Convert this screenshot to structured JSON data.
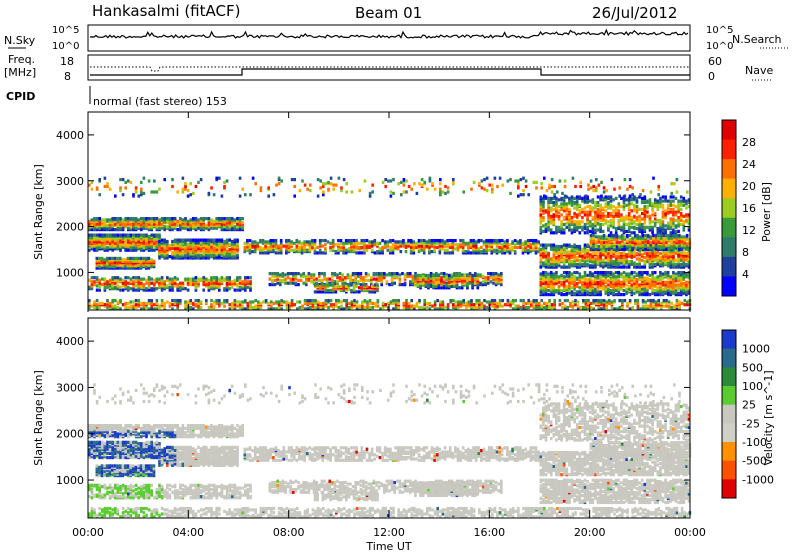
{
  "header": {
    "station": "Hankasalmi (fitACF)",
    "beam": "Beam 01",
    "date": "26/Jul/2012"
  },
  "top_panels": {
    "nsky_label": "N.Sky",
    "nsky_ticks": [
      "10^5",
      "10^0"
    ],
    "nsearch_label": "N.Search",
    "nsearch_ticks": [
      "10^5",
      "10^0"
    ],
    "freq_label_1": "Freq.",
    "freq_label_2": "[MHz]",
    "freq_ticks": [
      "18",
      "8"
    ],
    "nave_label": "Nave",
    "nave_ticks": [
      "60",
      "0"
    ],
    "cpid_label": "CPID",
    "mode_text": "normal (fast stereo) 153"
  },
  "chart_data": [
    {
      "type": "heatmap",
      "name": "power",
      "ylabel": "Slant Range [km]",
      "yticks": [
        "4000",
        "3000",
        "2000",
        "1000"
      ],
      "ylim": [
        180,
        4500
      ],
      "colorbar_label": "Power [dB]",
      "colorbar_ticks": [
        "28",
        "24",
        "20",
        "16",
        "12",
        "8",
        "4"
      ],
      "colors": [
        "#0000ff",
        "#1f3fa0",
        "#2f7a6a",
        "#3a9a3a",
        "#9ccc20",
        "#ffb000",
        "#ff7000",
        "#ff2000",
        "#e00000"
      ]
    },
    {
      "type": "heatmap",
      "name": "velocity",
      "ylabel": "Slant Range [km]",
      "yticks": [
        "4000",
        "3000",
        "2000",
        "1000"
      ],
      "ylim": [
        180,
        4500
      ],
      "colorbar_label": "Velocity [m s^-1]",
      "colorbar_ticks": [
        "1000",
        "500",
        "100",
        "25",
        "-25",
        "-100",
        "-500",
        "-1000"
      ],
      "colors": [
        "#1a3acc",
        "#2a6a8a",
        "#2a8a3a",
        "#5acc30",
        "#c8c8c0",
        "#d0d0c8",
        "#ff9000",
        "#ff5000",
        "#e00000"
      ]
    }
  ],
  "x_axis": {
    "label": "Time UT",
    "ticks": [
      "00:00",
      "04:00",
      "08:00",
      "12:00",
      "16:00",
      "20:00",
      "00:00"
    ]
  }
}
